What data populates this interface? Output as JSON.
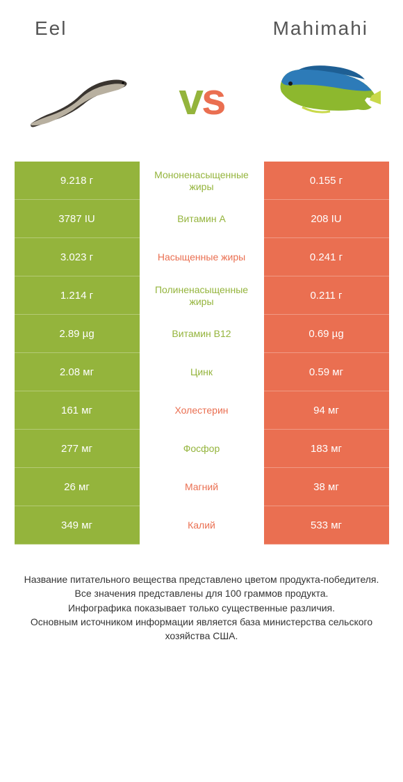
{
  "colors": {
    "left": "#94b43c",
    "right": "#ea6f51",
    "vs_left": "#94b43c",
    "vs_right": "#ea6f51",
    "text_mid_default": "#555555",
    "footer_text": "#333333",
    "header_text": "#555555"
  },
  "header": {
    "left_title": "Eel",
    "right_title": "Mahimahi"
  },
  "vs_label": "vs",
  "rows": [
    {
      "left": "9.218 г",
      "mid": "Мононенасыщенные жиры",
      "right": "0.155 г",
      "winner": "left"
    },
    {
      "left": "3787 IU",
      "mid": "Витамин A",
      "right": "208 IU",
      "winner": "left"
    },
    {
      "left": "3.023 г",
      "mid": "Насыщенные жиры",
      "right": "0.241 г",
      "winner": "right"
    },
    {
      "left": "1.214 г",
      "mid": "Полиненасыщенные жиры",
      "right": "0.211 г",
      "winner": "left"
    },
    {
      "left": "2.89 µg",
      "mid": "Витамин B12",
      "right": "0.69 µg",
      "winner": "left"
    },
    {
      "left": "2.08 мг",
      "mid": "Цинк",
      "right": "0.59 мг",
      "winner": "left"
    },
    {
      "left": "161 мг",
      "mid": "Холестерин",
      "right": "94 мг",
      "winner": "right"
    },
    {
      "left": "277 мг",
      "mid": "Фосфор",
      "right": "183 мг",
      "winner": "left"
    },
    {
      "left": "26 мг",
      "mid": "Магний",
      "right": "38 мг",
      "winner": "right"
    },
    {
      "left": "349 мг",
      "mid": "Калий",
      "right": "533 мг",
      "winner": "right"
    }
  ],
  "footer_lines": [
    "Название питательного вещества представлено цветом продукта-победителя.",
    "Все значения представлены для 100 граммов продукта.",
    "Инфографика показывает только существенные различия.",
    "Основным источником информации является база министерства сельского хозяйства США."
  ]
}
